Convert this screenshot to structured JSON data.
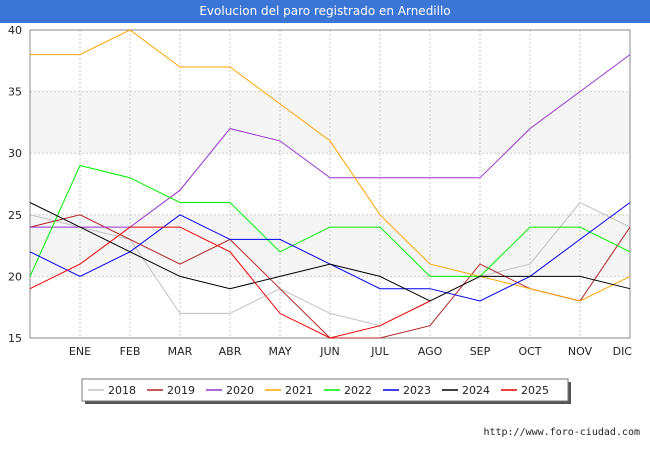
{
  "chart_data": {
    "type": "line",
    "title": "Evolucion del paro registrado en Arnedillo",
    "categories": [
      "",
      "ENE",
      "FEB",
      "MAR",
      "ABR",
      "MAY",
      "JUN",
      "JUL",
      "AGO",
      "SEP",
      "OCT",
      "NOV",
      "DIC"
    ],
    "ylim": [
      15,
      40
    ],
    "yticks": [
      15,
      20,
      25,
      30,
      35,
      40
    ],
    "xlabel": "",
    "ylabel": "",
    "legend_position": "bottom",
    "series": [
      {
        "name": "2018",
        "color": "#c0c0c0",
        "values": [
          25,
          24,
          23,
          17,
          17,
          19,
          17,
          16,
          null,
          20,
          21,
          26,
          24
        ]
      },
      {
        "name": "2019",
        "color": "#b22222",
        "values": [
          24,
          25,
          23,
          21,
          23,
          19,
          15,
          15,
          16,
          21,
          19,
          18,
          24
        ]
      },
      {
        "name": "2020",
        "color": "#9932cc",
        "values": [
          24,
          24,
          24,
          27,
          32,
          31,
          28,
          28,
          28,
          28,
          32,
          35,
          38
        ]
      },
      {
        "name": "2021",
        "color": "#ffa500",
        "values": [
          38,
          38,
          40,
          37,
          37,
          34,
          31,
          25,
          21,
          20,
          19,
          18,
          20
        ]
      },
      {
        "name": "2022",
        "color": "#00ee00",
        "values": [
          20,
          29,
          28,
          26,
          26,
          22,
          24,
          24,
          20,
          20,
          24,
          24,
          22
        ]
      },
      {
        "name": "2023",
        "color": "#0000ee",
        "values": [
          22,
          20,
          22,
          25,
          23,
          23,
          21,
          19,
          19,
          18,
          20,
          23,
          26
        ]
      },
      {
        "name": "2024",
        "color": "#000000",
        "values": [
          26,
          24,
          22,
          20,
          19,
          20,
          21,
          20,
          18,
          20,
          20,
          20,
          19
        ]
      },
      {
        "name": "2025",
        "color": "#ee0000",
        "values": [
          19,
          21,
          24,
          24,
          22,
          17,
          15,
          16,
          18,
          null,
          null,
          null,
          null
        ]
      }
    ]
  },
  "source": "http://www.foro-ciudad.com",
  "colors": {
    "title_bar": "#3b76d7",
    "grid": "#cccccc",
    "band": "#f5f5f5"
  }
}
